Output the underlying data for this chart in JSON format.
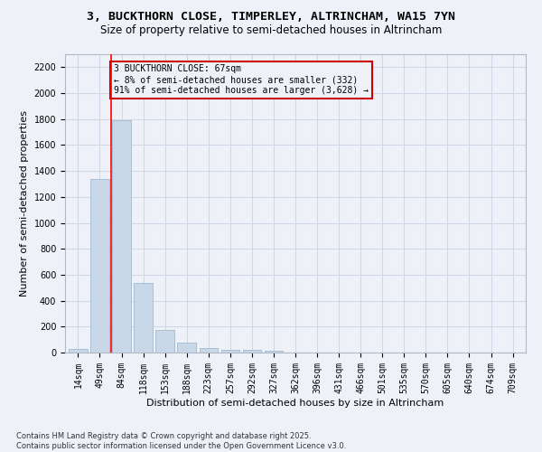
{
  "title_line1": "3, BUCKTHORN CLOSE, TIMPERLEY, ALTRINCHAM, WA15 7YN",
  "title_line2": "Size of property relative to semi-detached houses in Altrincham",
  "xlabel": "Distribution of semi-detached houses by size in Altrincham",
  "ylabel": "Number of semi-detached properties",
  "categories": [
    "14sqm",
    "49sqm",
    "84sqm",
    "118sqm",
    "153sqm",
    "188sqm",
    "223sqm",
    "257sqm",
    "292sqm",
    "327sqm",
    "362sqm",
    "396sqm",
    "431sqm",
    "466sqm",
    "501sqm",
    "535sqm",
    "570sqm",
    "605sqm",
    "640sqm",
    "674sqm",
    "709sqm"
  ],
  "values": [
    27,
    1340,
    1790,
    540,
    175,
    75,
    32,
    22,
    18,
    12,
    0,
    0,
    0,
    0,
    0,
    0,
    0,
    0,
    0,
    0,
    0
  ],
  "bar_color": "#c8d8e8",
  "bar_edge_color": "#a0b8d0",
  "grid_color": "#d0d8e8",
  "bg_color": "#eef2f8",
  "property_line_x": 1.5,
  "annotation_text": "3 BUCKTHORN CLOSE: 67sqm\n← 8% of semi-detached houses are smaller (332)\n91% of semi-detached houses are larger (3,628) →",
  "annotation_box_color": "#cc0000",
  "ylim": [
    0,
    2300
  ],
  "yticks": [
    0,
    200,
    400,
    600,
    800,
    1000,
    1200,
    1400,
    1600,
    1800,
    2000,
    2200
  ],
  "footnote": "Contains HM Land Registry data © Crown copyright and database right 2025.\nContains public sector information licensed under the Open Government Licence v3.0.",
  "title_fontsize": 9.5,
  "subtitle_fontsize": 8.5,
  "axis_label_fontsize": 8,
  "tick_fontsize": 7,
  "annotation_fontsize": 7
}
